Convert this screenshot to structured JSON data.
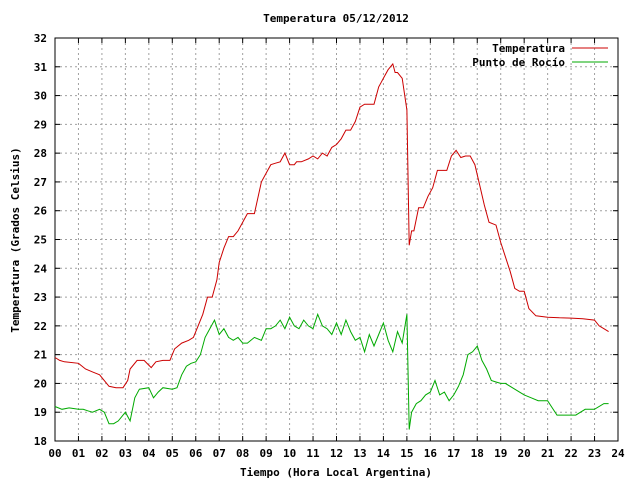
{
  "chart_data": {
    "type": "line",
    "title": "Temperatura 05/12/2012",
    "xlabel": "Tiempo (Hora Local Argentina)",
    "ylabel": "Temperatura (Grados Celsius)",
    "xlim": [
      0,
      24
    ],
    "ylim": [
      18,
      32
    ],
    "xticks": [
      "00",
      "01",
      "02",
      "03",
      "04",
      "05",
      "06",
      "07",
      "08",
      "09",
      "10",
      "11",
      "12",
      "13",
      "14",
      "15",
      "16",
      "17",
      "18",
      "19",
      "20",
      "21",
      "22",
      "23",
      "24"
    ],
    "yticks": [
      "18",
      "19",
      "20",
      "21",
      "22",
      "23",
      "24",
      "25",
      "26",
      "27",
      "28",
      "29",
      "30",
      "31",
      "32"
    ],
    "grid": true,
    "legend_position": "top-right",
    "series": [
      {
        "name": "Temperatura",
        "color": "#cc0000",
        "x": [
          0.0,
          0.2,
          0.4,
          1.0,
          1.3,
          1.6,
          1.9,
          2.3,
          2.6,
          2.9,
          3.1,
          3.2,
          3.5,
          3.8,
          4.1,
          4.3,
          4.6,
          4.9,
          5.1,
          5.4,
          5.7,
          5.9,
          6.1,
          6.3,
          6.5,
          6.7,
          6.9,
          7.0,
          7.2,
          7.4,
          7.6,
          7.8,
          8.0,
          8.2,
          8.5,
          8.8,
          9.0,
          9.2,
          9.4,
          9.6,
          9.8,
          10.0,
          10.2,
          10.3,
          10.5,
          10.8,
          11.0,
          11.2,
          11.4,
          11.6,
          11.8,
          12.0,
          12.2,
          12.4,
          12.6,
          12.8,
          13.0,
          13.2,
          13.4,
          13.6,
          13.8,
          14.0,
          14.2,
          14.4,
          14.5,
          14.6,
          14.8,
          15.0,
          15.1,
          15.2,
          15.3,
          15.5,
          15.7,
          15.9,
          16.1,
          16.3,
          16.5,
          16.7,
          16.9,
          17.1,
          17.3,
          17.5,
          17.7,
          17.9,
          18.1,
          18.3,
          18.5,
          18.8,
          19.0,
          19.2,
          19.4,
          19.6,
          19.8,
          20.0,
          20.2,
          20.5,
          21.0,
          21.5,
          22.0,
          22.5,
          23.0,
          23.2,
          23.4,
          23.6
        ],
        "y": [
          20.9,
          20.8,
          20.75,
          20.7,
          20.5,
          20.4,
          20.3,
          19.9,
          19.85,
          19.85,
          20.1,
          20.5,
          20.8,
          20.8,
          20.55,
          20.75,
          20.8,
          20.8,
          21.2,
          21.4,
          21.5,
          21.6,
          22.0,
          22.4,
          23.0,
          23.0,
          23.6,
          24.2,
          24.7,
          25.1,
          25.1,
          25.3,
          25.6,
          25.9,
          25.9,
          27.0,
          27.3,
          27.6,
          27.65,
          27.7,
          28.0,
          27.6,
          27.6,
          27.7,
          27.7,
          27.8,
          27.9,
          27.8,
          28.0,
          27.9,
          28.2,
          28.3,
          28.5,
          28.8,
          28.8,
          29.1,
          29.6,
          29.7,
          29.7,
          29.7,
          30.3,
          30.6,
          30.9,
          31.1,
          30.8,
          30.8,
          30.6,
          29.5,
          24.8,
          25.3,
          25.3,
          26.1,
          26.1,
          26.5,
          26.8,
          27.4,
          27.4,
          27.4,
          27.9,
          28.1,
          27.85,
          27.9,
          27.9,
          27.6,
          26.9,
          26.2,
          25.6,
          25.5,
          24.9,
          24.4,
          23.9,
          23.3,
          23.2,
          23.2,
          22.6,
          22.35,
          22.3,
          22.28,
          22.27,
          22.25,
          22.2,
          22.0,
          21.9,
          21.8
        ]
      },
      {
        "name": "Punto de Rocío",
        "color": "#00aa00",
        "x": [
          0.0,
          0.3,
          0.6,
          1.0,
          1.2,
          1.4,
          1.6,
          1.9,
          2.1,
          2.3,
          2.5,
          2.7,
          3.0,
          3.2,
          3.4,
          3.6,
          4.0,
          4.2,
          4.4,
          4.6,
          5.0,
          5.2,
          5.4,
          5.6,
          5.8,
          6.0,
          6.2,
          6.4,
          6.6,
          6.8,
          7.0,
          7.2,
          7.4,
          7.6,
          7.8,
          8.0,
          8.2,
          8.5,
          8.8,
          9.0,
          9.2,
          9.4,
          9.6,
          9.8,
          10.0,
          10.2,
          10.4,
          10.6,
          10.8,
          11.0,
          11.2,
          11.4,
          11.6,
          11.8,
          12.0,
          12.2,
          12.4,
          12.6,
          12.8,
          13.0,
          13.2,
          13.4,
          13.6,
          13.8,
          14.0,
          14.2,
          14.4,
          14.6,
          14.8,
          15.0,
          15.1,
          15.2,
          15.4,
          15.6,
          15.8,
          16.0,
          16.2,
          16.4,
          16.6,
          16.8,
          17.0,
          17.2,
          17.4,
          17.6,
          17.8,
          18.0,
          18.2,
          18.4,
          18.6,
          18.8,
          19.0,
          19.2,
          19.4,
          19.6,
          19.8,
          20.0,
          20.3,
          20.6,
          21.0,
          21.4,
          21.8,
          22.2,
          22.6,
          23.0,
          23.4,
          23.6
        ],
        "y": [
          19.2,
          19.1,
          19.15,
          19.1,
          19.1,
          19.05,
          19.0,
          19.1,
          19.0,
          18.6,
          18.6,
          18.7,
          19.0,
          18.7,
          19.5,
          19.8,
          19.85,
          19.5,
          19.7,
          19.85,
          19.8,
          19.85,
          20.3,
          20.6,
          20.7,
          20.75,
          21.0,
          21.6,
          21.9,
          22.2,
          21.7,
          21.9,
          21.6,
          21.5,
          21.6,
          21.4,
          21.4,
          21.6,
          21.5,
          21.9,
          21.9,
          22.0,
          22.2,
          21.9,
          22.3,
          22.0,
          21.9,
          22.2,
          22.0,
          21.9,
          22.4,
          22.0,
          21.9,
          21.7,
          22.1,
          21.7,
          22.2,
          21.8,
          21.5,
          21.6,
          21.1,
          21.7,
          21.3,
          21.7,
          22.1,
          21.5,
          21.1,
          21.8,
          21.4,
          22.4,
          18.4,
          19.0,
          19.3,
          19.4,
          19.6,
          19.7,
          20.1,
          19.6,
          19.7,
          19.4,
          19.6,
          19.9,
          20.3,
          21.0,
          21.1,
          21.3,
          20.8,
          20.5,
          20.1,
          20.05,
          20.0,
          20.0,
          19.9,
          19.8,
          19.7,
          19.6,
          19.5,
          19.4,
          19.4,
          18.9,
          18.9,
          18.9,
          19.1,
          19.1,
          19.3,
          19.3
        ]
      }
    ]
  }
}
